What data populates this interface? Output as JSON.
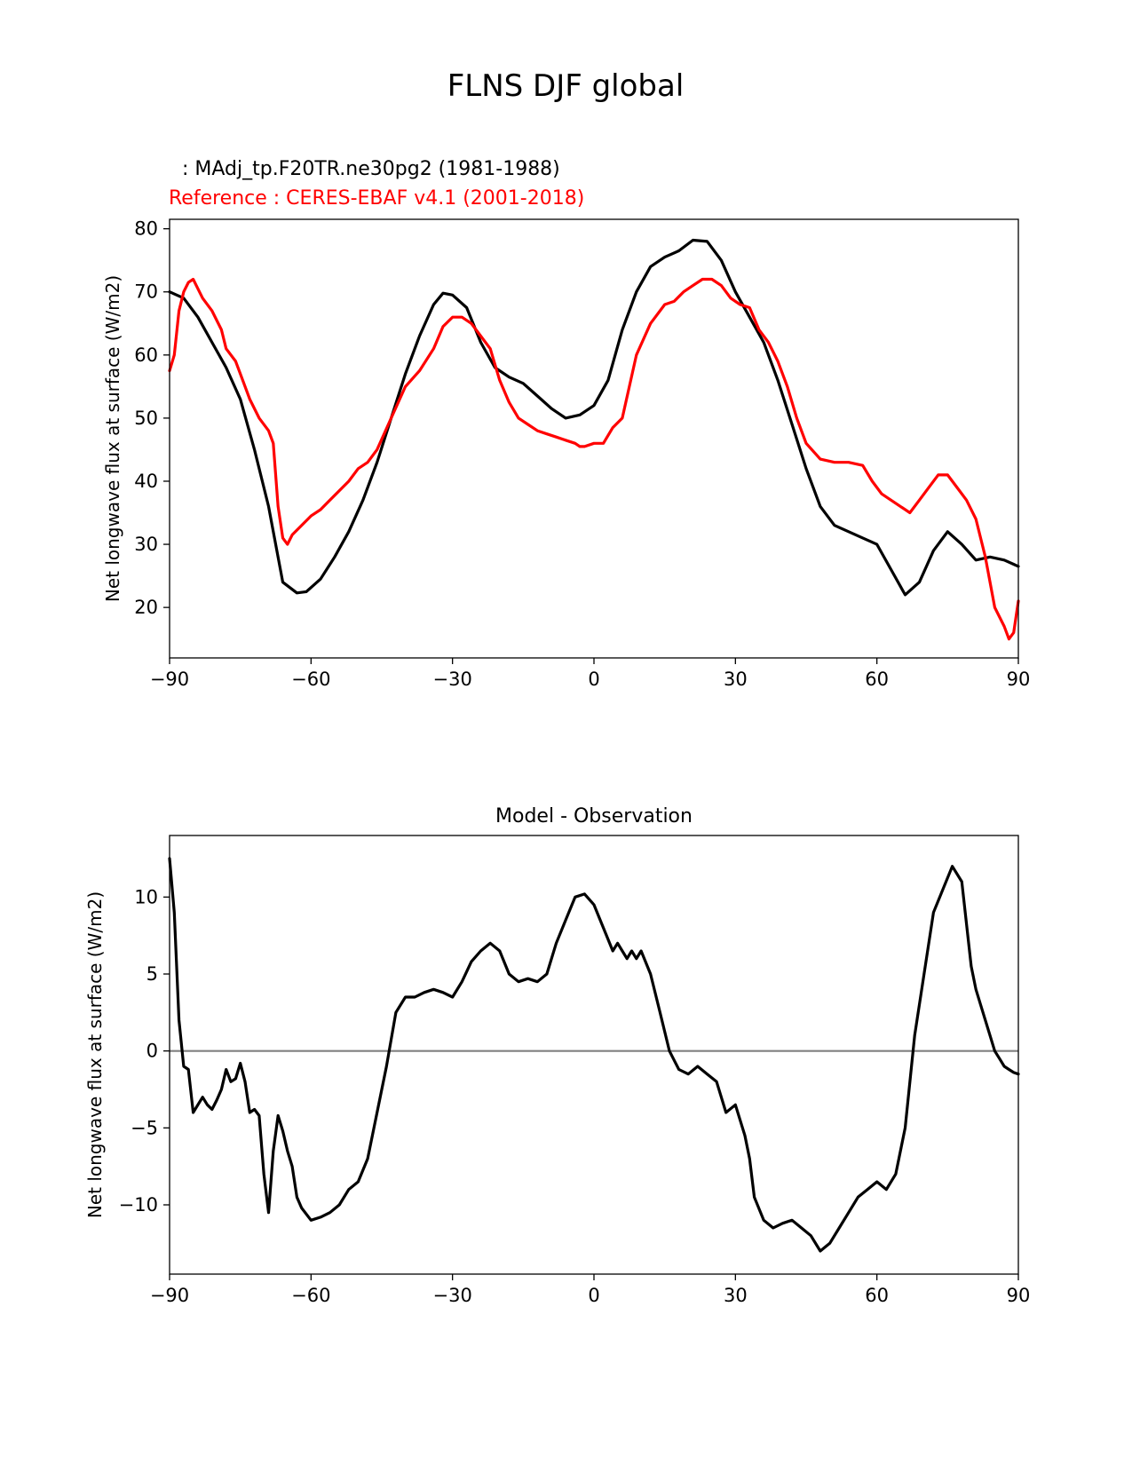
{
  "figure": {
    "title": "FLNS DJF global"
  },
  "colors": {
    "model": "#000000",
    "reference": "#ff0000",
    "zero_line": "#808080"
  },
  "chart_data": [
    {
      "type": "line",
      "test_label": ": MAdj_tp.F20TR.ne30pg2 (1981-1988)",
      "ref_label": "Reference : CERES-EBAF v4.1 (2001-2018)",
      "xlabel": "",
      "ylabel": "Net longwave flux at surface (W/m2)",
      "xlim": [
        -90,
        90
      ],
      "ylim": [
        12,
        81.5
      ],
      "xticks": [
        -90,
        -60,
        -30,
        0,
        30,
        60,
        90
      ],
      "yticks": [
        20,
        30,
        40,
        50,
        60,
        70,
        80
      ],
      "grid": false,
      "series": [
        {
          "key": "model",
          "x": [
            -90,
            -87,
            -84,
            -81,
            -78,
            -75,
            -72,
            -69,
            -66,
            -63,
            -61,
            -58,
            -55,
            -52,
            -49,
            -46,
            -43,
            -40,
            -37,
            -34,
            -32,
            -30,
            -27,
            -24,
            -21,
            -18,
            -15,
            -12,
            -9,
            -6,
            -3,
            0,
            3,
            6,
            9,
            12,
            15,
            18,
            21,
            24,
            27,
            30,
            33,
            36,
            39,
            42,
            45,
            48,
            51,
            54,
            57,
            60,
            63,
            66,
            69,
            72,
            75,
            78,
            81,
            84,
            87,
            90
          ],
          "y": [
            70,
            69,
            66,
            62,
            58,
            53,
            45,
            36,
            24,
            22.3,
            22.5,
            24.5,
            28,
            32,
            37,
            43,
            50,
            57,
            63,
            68,
            69.8,
            69.5,
            67.5,
            62,
            58,
            56.5,
            55.5,
            53.5,
            51.5,
            50,
            50.5,
            52,
            56,
            64,
            70,
            74,
            75.5,
            76.5,
            78.2,
            78,
            75,
            70,
            66,
            62,
            56,
            49,
            42,
            36,
            33,
            32,
            31,
            30,
            26,
            22,
            24,
            29,
            32,
            30,
            27.5,
            28,
            27.5,
            26.5
          ]
        },
        {
          "key": "reference",
          "x": [
            -90,
            -89,
            -88,
            -87,
            -86,
            -85,
            -84,
            -83,
            -81,
            -79,
            -78,
            -76,
            -75,
            -73,
            -71,
            -69,
            -68,
            -67,
            -66,
            -65,
            -64,
            -62,
            -60,
            -58,
            -56,
            -54,
            -52,
            -50,
            -48,
            -46,
            -43,
            -40,
            -37,
            -34,
            -32,
            -30,
            -28,
            -26,
            -24,
            -22,
            -20,
            -18,
            -16,
            -14,
            -12,
            -10,
            -8,
            -6,
            -4,
            -3,
            -2,
            0,
            2,
            4,
            6,
            9,
            12,
            15,
            17,
            19,
            21,
            23,
            25,
            27,
            29,
            31,
            33,
            35,
            37,
            39,
            41,
            43,
            45,
            48,
            51,
            54,
            57,
            59,
            61,
            63,
            65,
            67,
            69,
            71,
            73,
            75,
            77,
            79,
            81,
            83,
            85,
            87,
            88,
            89,
            90
          ],
          "y": [
            57.5,
            60,
            67,
            70,
            71.5,
            72,
            70.5,
            69,
            67,
            64,
            61,
            59,
            57,
            53,
            50,
            48,
            46,
            36,
            31,
            30,
            31.5,
            33,
            34.5,
            35.5,
            37,
            38.5,
            40,
            42,
            43,
            45,
            50,
            55,
            57.5,
            61,
            64.5,
            66,
            66,
            65,
            63,
            61,
            56,
            52.5,
            50,
            49,
            48,
            47.5,
            47,
            46.5,
            46,
            45.5,
            45.5,
            46,
            46,
            48.5,
            50,
            60,
            65,
            68,
            68.5,
            70,
            71,
            72,
            72,
            71,
            69,
            68,
            67.5,
            64,
            62,
            59,
            55,
            50,
            46,
            43.5,
            43,
            43,
            42.5,
            40,
            38,
            37,
            36,
            35,
            37,
            39,
            41,
            41,
            39,
            37,
            34,
            28,
            20,
            17,
            15,
            16,
            21
          ]
        }
      ]
    },
    {
      "type": "line",
      "title": "Model - Observation",
      "xlabel": "",
      "ylabel": "Net longwave flux at surface (W/m2)",
      "xlim": [
        -90,
        90
      ],
      "ylim": [
        -14.5,
        14
      ],
      "xticks": [
        -90,
        -60,
        -30,
        0,
        30,
        60,
        90
      ],
      "yticks": [
        -10,
        -5,
        0,
        5,
        10
      ],
      "grid": false,
      "zero_line": 0,
      "series": [
        {
          "key": "difference",
          "x": [
            -90,
            -89,
            -88,
            -87,
            -86,
            -85,
            -84,
            -83,
            -82,
            -81,
            -80,
            -79,
            -78,
            -77,
            -76,
            -75,
            -74,
            -73,
            -72,
            -71,
            -70,
            -69,
            -68,
            -67,
            -66,
            -65,
            -64,
            -63,
            -62,
            -60,
            -58,
            -56,
            -54,
            -52,
            -50,
            -48,
            -46,
            -44,
            -42,
            -40,
            -38,
            -36,
            -34,
            -32,
            -30,
            -28,
            -26,
            -24,
            -22,
            -20,
            -18,
            -16,
            -14,
            -12,
            -10,
            -8,
            -6,
            -4,
            -2,
            0,
            2,
            4,
            5,
            6,
            7,
            8,
            9,
            10,
            12,
            14,
            16,
            18,
            20,
            22,
            24,
            26,
            28,
            30,
            32,
            33,
            34,
            36,
            38,
            40,
            42,
            44,
            46,
            48,
            50,
            52,
            54,
            56,
            58,
            60,
            62,
            64,
            66,
            68,
            70,
            72,
            74,
            76,
            78,
            80,
            81,
            82,
            83,
            84,
            85,
            86,
            87,
            88,
            89,
            90
          ],
          "y": [
            12.5,
            9,
            2,
            -1,
            -1.2,
            -4,
            -3.5,
            -3,
            -3.5,
            -3.8,
            -3.2,
            -2.5,
            -1.2,
            -2,
            -1.8,
            -0.8,
            -2,
            -4,
            -3.8,
            -4.2,
            -8,
            -10.5,
            -6.5,
            -4.2,
            -5.2,
            -6.5,
            -7.5,
            -9.5,
            -10.2,
            -11,
            -10.8,
            -10.5,
            -10,
            -9,
            -8.5,
            -7,
            -4,
            -1,
            2.5,
            3.5,
            3.5,
            3.8,
            4,
            3.8,
            3.5,
            4.5,
            5.8,
            6.5,
            7,
            6.5,
            5,
            4.5,
            4.7,
            4.5,
            5,
            7,
            8.5,
            10,
            10.2,
            9.5,
            8,
            6.5,
            7,
            6.5,
            6,
            6.5,
            6,
            6.5,
            5,
            2.5,
            0,
            -1.2,
            -1.5,
            -1,
            -1.5,
            -2,
            -4,
            -3.5,
            -5.5,
            -7,
            -9.5,
            -11,
            -11.5,
            -11.2,
            -11,
            -11.5,
            -12,
            -13,
            -12.5,
            -11.5,
            -10.5,
            -9.5,
            -9,
            -8.5,
            -9,
            -8,
            -5,
            1,
            5,
            9,
            10.5,
            12,
            11,
            5.5,
            4,
            3,
            2,
            1,
            0,
            -0.5,
            -1,
            -1.2,
            -1.4,
            -1.5
          ]
        }
      ]
    }
  ]
}
